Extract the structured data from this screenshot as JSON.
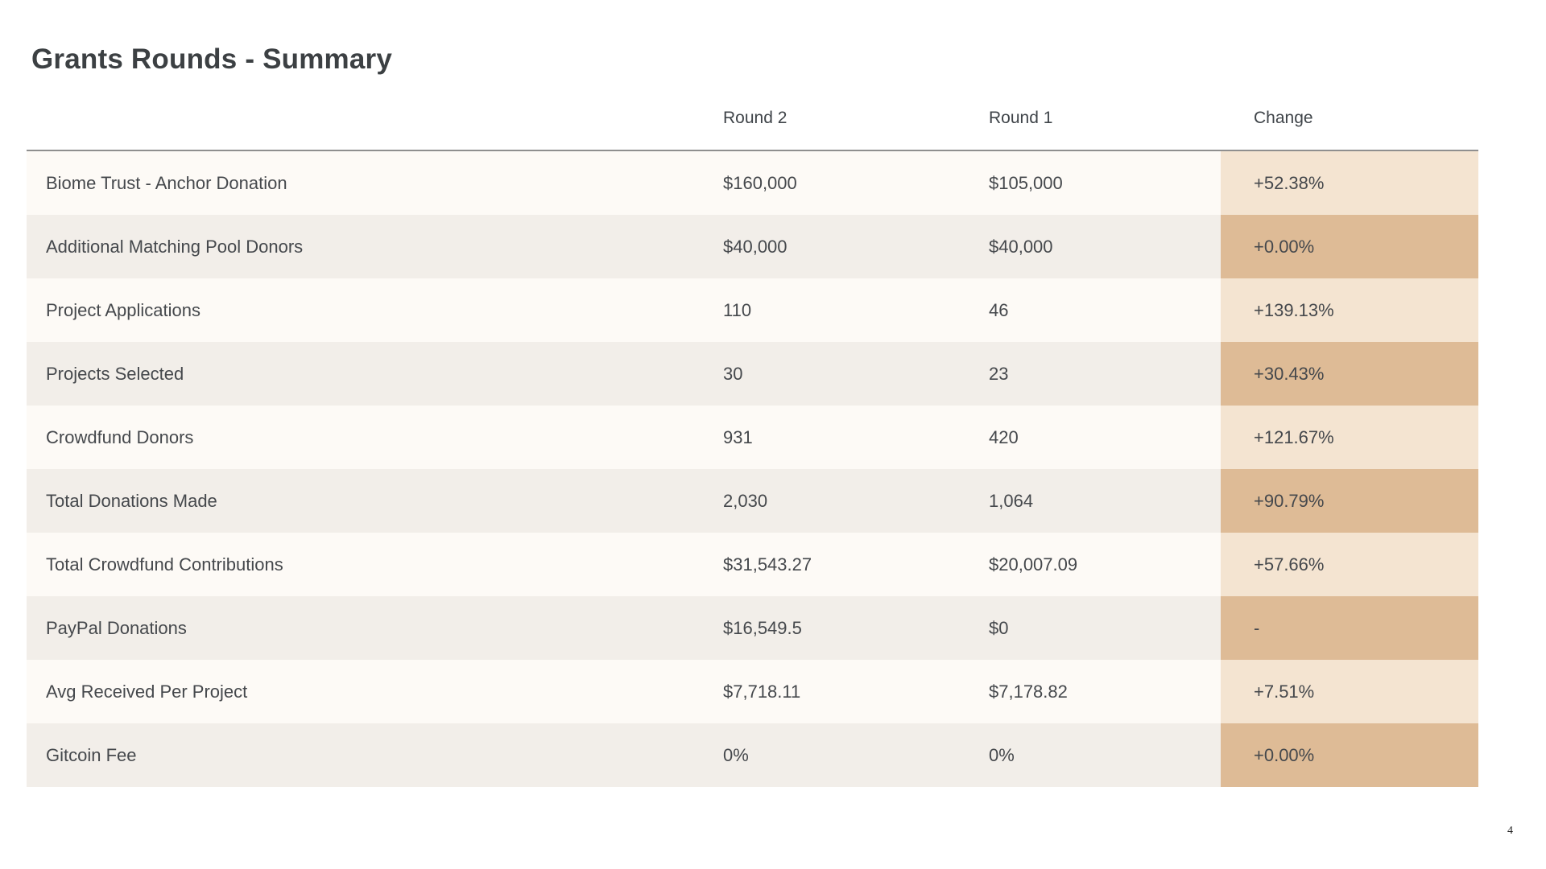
{
  "slide": {
    "title": "Grants Rounds - Summary",
    "page_number": "4"
  },
  "chart_data": {
    "type": "table",
    "title": "Grants Rounds - Summary",
    "columns": [
      "",
      "Round 2",
      "Round 1",
      "Change"
    ],
    "rows": [
      {
        "cells": [
          "Biome Trust - Anchor Donation",
          "$160,000",
          "$105,000",
          "+52.38%"
        ]
      },
      {
        "cells": [
          "Additional Matching Pool Donors",
          "$40,000",
          "$40,000",
          "+0.00%"
        ]
      },
      {
        "cells": [
          "Project Applications",
          "110",
          "46",
          "+139.13%"
        ]
      },
      {
        "cells": [
          "Projects Selected",
          "30",
          "23",
          "+30.43%"
        ]
      },
      {
        "cells": [
          "Crowdfund Donors",
          "931",
          "420",
          "+121.67%"
        ]
      },
      {
        "cells": [
          "Total Donations Made",
          "2,030",
          "1,064",
          "+90.79%"
        ]
      },
      {
        "cells": [
          "Total Crowdfund Contributions",
          "$31,543.27",
          "$20,007.09",
          "+57.66%"
        ]
      },
      {
        "cells": [
          "PayPal Donations",
          "$16,549.5",
          "$0",
          "-"
        ]
      },
      {
        "cells": [
          "Avg Received Per Project",
          "$7,718.11",
          "$7,178.82",
          "+7.51%"
        ]
      },
      {
        "cells": [
          "Gitcoin Fee",
          "0%",
          "0%",
          "+0.00%"
        ]
      }
    ],
    "layout_hints": {
      "row_striping": true,
      "highlighted_column": "Change"
    }
  },
  "colors": {
    "row_odd_bg": "#FDFAF6",
    "row_even_bg": "#F2EEE9",
    "change_odd_bg": "#F4E4D1",
    "change_even_bg": "#DEBB96",
    "header_border": "#8F8F8F",
    "text": "#45484C",
    "title_text": "#3C4043"
  }
}
